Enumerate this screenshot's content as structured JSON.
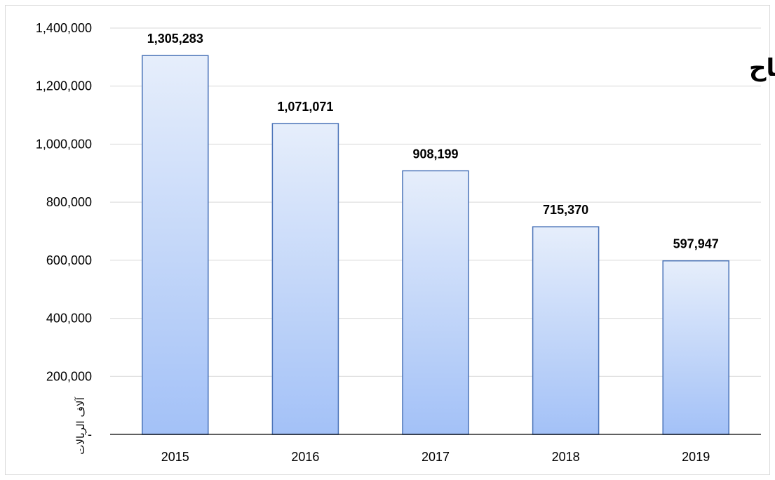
{
  "chart_data": {
    "type": "bar",
    "title": "إجمالي الأرباح",
    "xlabel": "",
    "ylabel": "آلاف الريالات",
    "categories": [
      "2015",
      "2016",
      "2017",
      "2018",
      "2019"
    ],
    "values": [
      1305283,
      1071071,
      908199,
      715370,
      597947
    ],
    "value_labels": [
      "1,305,283",
      "1,071,071",
      "908,199",
      "715,370",
      "597,947"
    ],
    "ylim": [
      0,
      1400000
    ],
    "yticks": [
      0,
      200000,
      400000,
      600000,
      800000,
      1000000,
      1200000,
      1400000
    ],
    "ytick_labels": [
      "-",
      "200,000",
      "400,000",
      "600,000",
      "800,000",
      "1,000,000",
      "1,200,000",
      "1,400,000"
    ],
    "grid": true,
    "legend": "none",
    "colors": {
      "bar_top": "#e6eefb",
      "bar_bottom": "#a3c1f7",
      "bar_border": "#4a73b8",
      "gridline": "#d9d9d9",
      "axis": "#000000"
    }
  }
}
